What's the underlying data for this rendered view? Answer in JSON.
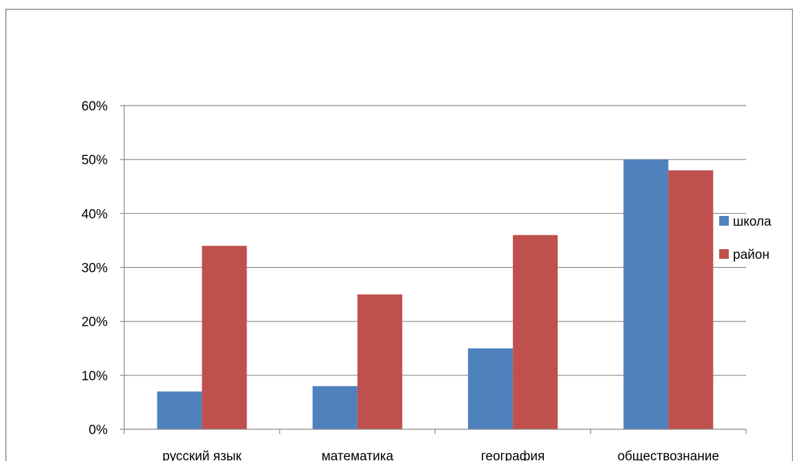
{
  "chart_data": {
    "type": "bar",
    "categories": [
      "русский язык",
      "математика",
      "география",
      "обществознание"
    ],
    "series": [
      {
        "name": "школа",
        "color": "#4f81bd",
        "values": [
          7,
          8,
          15,
          50
        ]
      },
      {
        "name": "район",
        "color": "#c0504d",
        "values": [
          34,
          25,
          36,
          48
        ]
      }
    ],
    "ylim": [
      0,
      60
    ],
    "yticks": [
      "0%",
      "10%",
      "20%",
      "30%",
      "40%",
      "50%",
      "60%"
    ],
    "grid": true,
    "legend": "right"
  }
}
